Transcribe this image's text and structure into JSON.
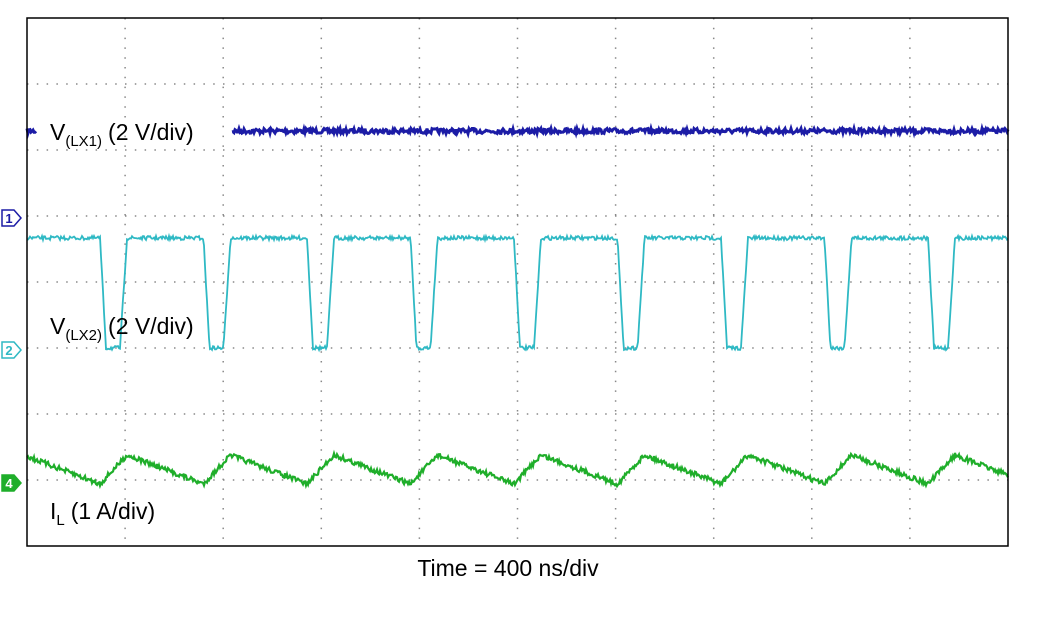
{
  "traces": [
    {
      "main": "V",
      "sub": "(LX1)",
      "scale": "(2 V/div)",
      "marker": "1",
      "color": "#1c1ca6"
    },
    {
      "main": "V",
      "sub": "(LX2)",
      "scale": "(2 V/div)",
      "marker": "2",
      "color": "#2fb9c4"
    },
    {
      "main": "I",
      "sub": "L",
      "scale": "(1 A/div)",
      "marker": "4",
      "color": "#1fae2a"
    }
  ],
  "x_label": "Time = 400 ns/div"
}
